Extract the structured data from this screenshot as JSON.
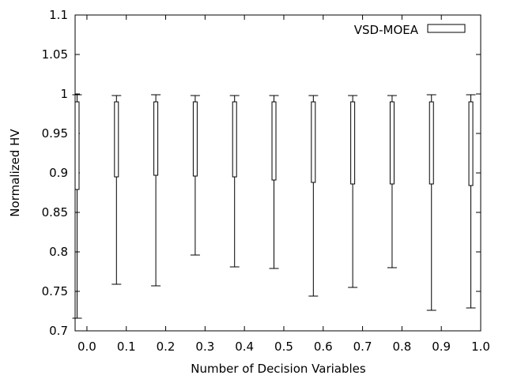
{
  "chart_data": {
    "type": "boxplot",
    "title": "",
    "xlabel": "Number of Decision Variables",
    "ylabel": "Normalized HV",
    "xlim": [
      -0.03,
      1.0
    ],
    "ylim": [
      0.7,
      1.1
    ],
    "x_ticks": [
      "0.0",
      "0.1",
      "0.2",
      "0.3",
      "0.4",
      "0.5",
      "0.6",
      "0.7",
      "0.8",
      "0.9",
      "1.0"
    ],
    "x_tick_values": [
      0.0,
      0.1,
      0.2,
      0.3,
      0.4,
      0.5,
      0.6,
      0.7,
      0.8,
      0.9,
      1.0
    ],
    "y_ticks": [
      "0.7",
      "0.75",
      "0.8",
      "0.85",
      "0.9",
      "0.95",
      "1",
      "1.05",
      "1.1"
    ],
    "y_tick_values": [
      0.7,
      0.75,
      0.8,
      0.85,
      0.9,
      0.95,
      1.0,
      1.05,
      1.1
    ],
    "grid": false,
    "legend": {
      "position": "top-right"
    },
    "series": [
      {
        "name": "VSD-MOEA",
        "boxes": [
          {
            "x": -0.025,
            "min": 0.716,
            "q1": 0.879,
            "q3": 0.99,
            "max": 0.999
          },
          {
            "x": 0.075,
            "min": 0.759,
            "q1": 0.895,
            "q3": 0.99,
            "max": 0.998
          },
          {
            "x": 0.175,
            "min": 0.757,
            "q1": 0.897,
            "q3": 0.99,
            "max": 0.999
          },
          {
            "x": 0.275,
            "min": 0.796,
            "q1": 0.896,
            "q3": 0.99,
            "max": 0.998
          },
          {
            "x": 0.375,
            "min": 0.781,
            "q1": 0.895,
            "q3": 0.99,
            "max": 0.998
          },
          {
            "x": 0.475,
            "min": 0.779,
            "q1": 0.891,
            "q3": 0.99,
            "max": 0.998
          },
          {
            "x": 0.575,
            "min": 0.744,
            "q1": 0.888,
            "q3": 0.99,
            "max": 0.998
          },
          {
            "x": 0.675,
            "min": 0.755,
            "q1": 0.886,
            "q3": 0.99,
            "max": 0.998
          },
          {
            "x": 0.775,
            "min": 0.78,
            "q1": 0.886,
            "q3": 0.99,
            "max": 0.998
          },
          {
            "x": 0.875,
            "min": 0.726,
            "q1": 0.886,
            "q3": 0.99,
            "max": 0.999
          },
          {
            "x": 0.975,
            "min": 0.729,
            "q1": 0.884,
            "q3": 0.99,
            "max": 0.999
          }
        ]
      }
    ]
  }
}
